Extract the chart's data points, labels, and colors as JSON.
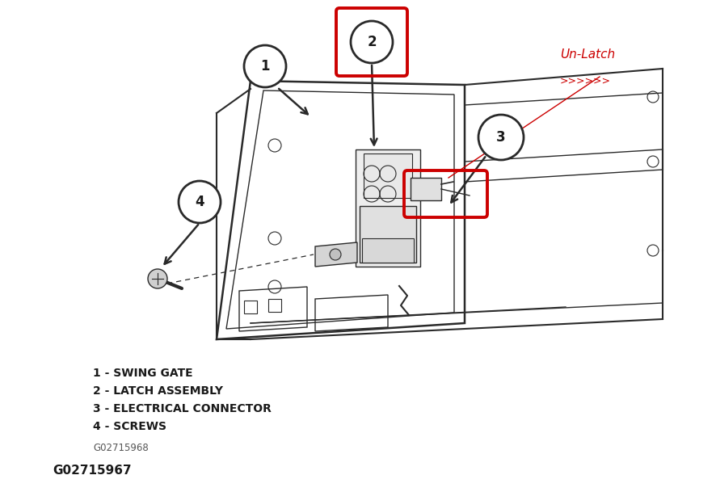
{
  "bg_color": "#ffffff",
  "legend_lines": [
    "1 - SWING GATE",
    "2 - LATCH ASSEMBLY",
    "3 - ELECTRICAL CONNECTOR",
    "4 - SCREWS"
  ],
  "figure_id": "G02715968",
  "figure_id2": "G02715967",
  "unlatch_text": "Un-Latch",
  "unlatch_arrows": ">>>>>>",
  "unlatch_color": "#cc0000",
  "line_color": "#2a2a2a",
  "text_color": "#1a1a1a",
  "red_box_color": "#cc0000",
  "legend_fontsize": 10.0,
  "figsize": [
    8.86,
    6.09
  ],
  "dpi": 100
}
